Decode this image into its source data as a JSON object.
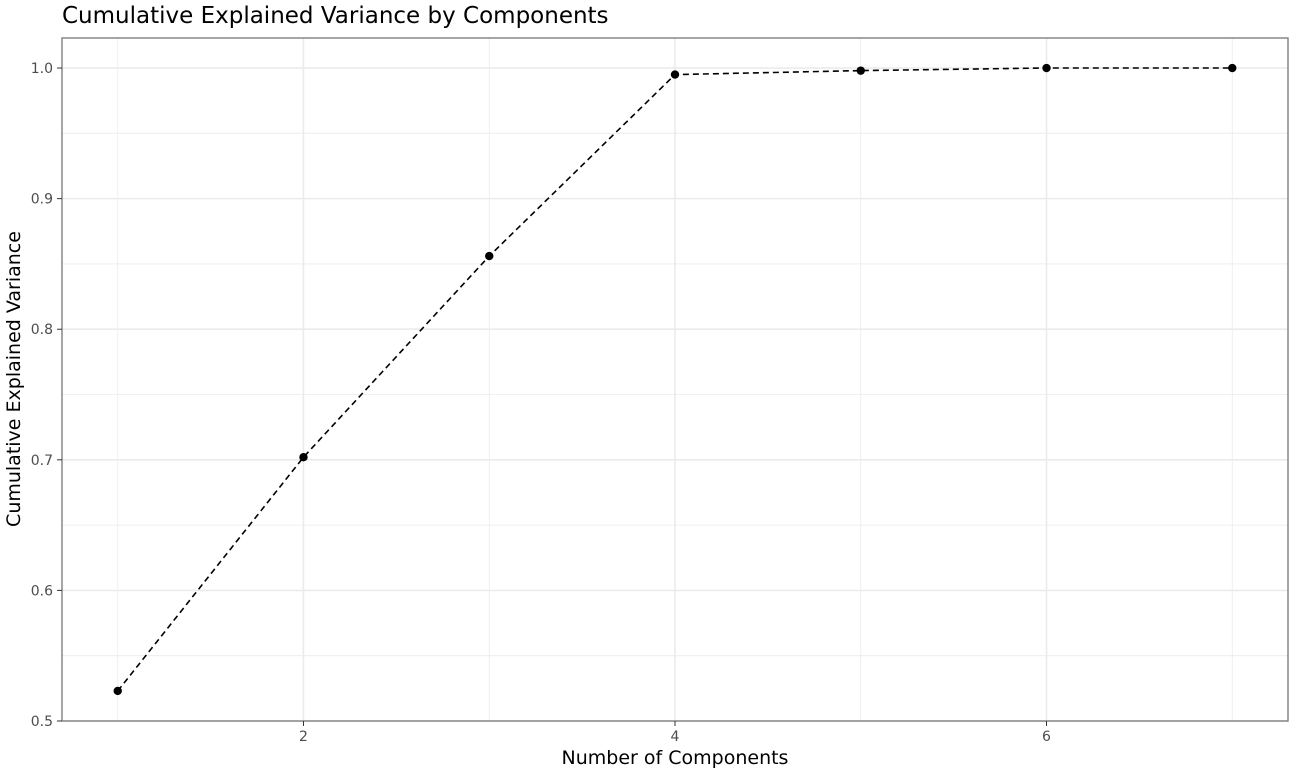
{
  "chart_data": {
    "type": "line",
    "title": "Cumulative Explained Variance by Components",
    "xlabel": "Number of Components",
    "ylabel": "Cumulative Explained Variance",
    "x": [
      1,
      2,
      3,
      4,
      5,
      6,
      7
    ],
    "series": [
      {
        "values": [
          0.523,
          0.702,
          0.856,
          0.995,
          0.998,
          1.0,
          1.0
        ],
        "color": "#000000",
        "line_style": "dashed",
        "markers": true
      }
    ],
    "xlim": [
      0.7,
      7.3
    ],
    "ylim": [
      0.5,
      1.023
    ],
    "x_ticks": [
      2,
      4,
      6
    ],
    "x_tick_labels": [
      "2",
      "4",
      "6"
    ],
    "y_ticks": [
      0.5,
      0.6,
      0.7,
      0.8,
      0.9,
      1.0
    ],
    "y_tick_labels": [
      "0.5",
      "0.6",
      "0.7",
      "0.8",
      "0.9",
      "1.0"
    ],
    "grid": true,
    "legend": "none",
    "colors": {
      "panel_border": "#7f7f7f",
      "grid": "#ebebeb",
      "tick_text": "#4d4d4d"
    }
  }
}
